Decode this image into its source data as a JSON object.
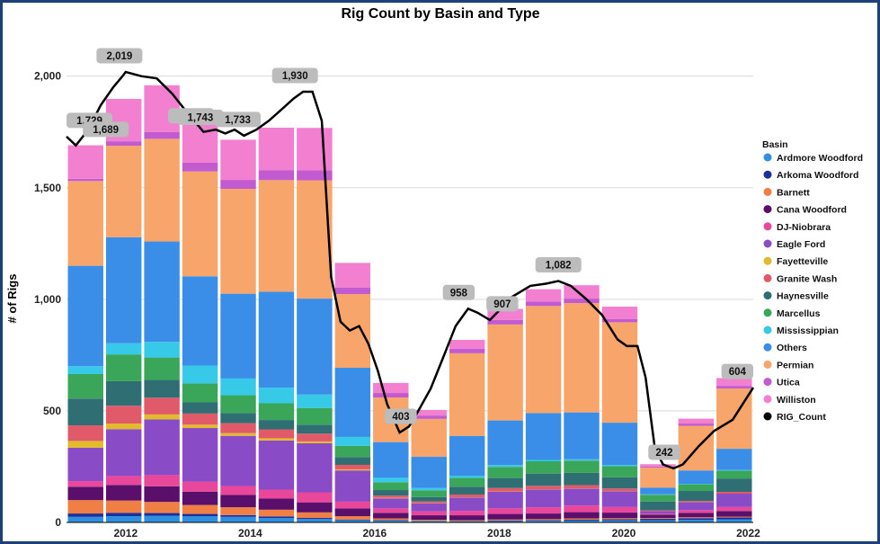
{
  "chart_data": {
    "type": "bar",
    "title": "Rig Count by Basin and Type",
    "ylabel": "# of Rigs",
    "xlabel": "",
    "x_ticks": [
      "2012",
      "2014",
      "2016",
      "2018",
      "2020",
      "2022"
    ],
    "y_ticks": [
      "0",
      "500",
      "1,000",
      "1,500",
      "2,000"
    ],
    "ylim": [
      0,
      2180
    ],
    "xlim": [
      2011.05,
      2022.08
    ],
    "grid": true,
    "legend": {
      "title": "Basin",
      "placement": "right"
    },
    "series": [
      {
        "name": "Ardmore Woodford",
        "color": "#2f8fe0",
        "values": [
          25,
          28,
          30,
          28,
          25,
          20,
          15,
          10,
          8,
          6,
          5,
          6,
          7,
          8,
          9,
          10,
          12,
          14
        ]
      },
      {
        "name": "Arkoma Woodford",
        "color": "#1c2f9a",
        "values": [
          15,
          15,
          12,
          10,
          8,
          7,
          5,
          3,
          2,
          1,
          1,
          2,
          3,
          4,
          5,
          6,
          7,
          8
        ]
      },
      {
        "name": "Barnett",
        "color": "#f07f45",
        "values": [
          60,
          55,
          50,
          40,
          35,
          30,
          25,
          15,
          8,
          5,
          4,
          5,
          5,
          6,
          5,
          4,
          4,
          4
        ]
      },
      {
        "name": "Cana Woodford",
        "color": "#5a0f6a",
        "values": [
          60,
          70,
          70,
          60,
          55,
          50,
          45,
          35,
          25,
          20,
          22,
          25,
          25,
          28,
          25,
          15,
          20,
          25
        ]
      },
      {
        "name": "DJ-Niobrara",
        "color": "#e8479b",
        "values": [
          25,
          40,
          50,
          45,
          40,
          40,
          45,
          30,
          20,
          18,
          20,
          25,
          28,
          30,
          25,
          5,
          12,
          18
        ]
      },
      {
        "name": "Eagle Ford",
        "color": "#8a4bc7",
        "values": [
          150,
          210,
          250,
          240,
          225,
          220,
          220,
          140,
          45,
          35,
          60,
          75,
          80,
          75,
          70,
          10,
          35,
          60
        ]
      },
      {
        "name": "Fayetteville",
        "color": "#e3bb2a",
        "values": [
          30,
          25,
          22,
          15,
          12,
          10,
          8,
          5,
          2,
          1,
          1,
          1,
          1,
          1,
          1,
          0,
          0,
          0
        ]
      },
      {
        "name": "Granite Wash",
        "color": "#e05a6a",
        "values": [
          70,
          80,
          75,
          50,
          45,
          40,
          35,
          20,
          10,
          8,
          12,
          15,
          15,
          15,
          12,
          4,
          6,
          8
        ]
      },
      {
        "name": "Haynesville",
        "color": "#2f6f73",
        "values": [
          120,
          110,
          80,
          50,
          45,
          42,
          40,
          35,
          25,
          20,
          35,
          45,
          55,
          55,
          50,
          40,
          45,
          60
        ]
      },
      {
        "name": "Marcellus",
        "color": "#3aa65a",
        "values": [
          110,
          120,
          100,
          85,
          80,
          75,
          75,
          50,
          35,
          30,
          40,
          50,
          55,
          55,
          50,
          30,
          30,
          35
        ]
      },
      {
        "name": "Mississippian",
        "color": "#36c9e8",
        "values": [
          35,
          50,
          70,
          80,
          75,
          70,
          60,
          40,
          20,
          10,
          8,
          8,
          6,
          6,
          5,
          2,
          2,
          3
        ]
      },
      {
        "name": "Others",
        "color": "#3b8ee8",
        "values": [
          450,
          475,
          450,
          400,
          380,
          430,
          430,
          310,
          160,
          140,
          180,
          200,
          210,
          210,
          190,
          30,
          60,
          95
        ]
      },
      {
        "name": "Permian",
        "color": "#f7a56b",
        "values": [
          380,
          410,
          460,
          470,
          470,
          500,
          530,
          330,
          200,
          170,
          370,
          430,
          480,
          490,
          450,
          90,
          200,
          270
        ]
      },
      {
        "name": "Utica",
        "color": "#c25ad0",
        "values": [
          10,
          20,
          30,
          40,
          40,
          45,
          45,
          30,
          20,
          15,
          20,
          20,
          20,
          20,
          15,
          5,
          10,
          12
        ]
      },
      {
        "name": "Williston",
        "color": "#f27fcf",
        "values": [
          150,
          190,
          210,
          190,
          180,
          190,
          190,
          110,
          45,
          25,
          40,
          50,
          55,
          60,
          55,
          10,
          22,
          35
        ]
      }
    ],
    "rig_count": {
      "name": "RIG_Count",
      "color": "#000000",
      "points": [
        [
          2011.05,
          1729
        ],
        [
          2011.2,
          1689
        ],
        [
          2011.4,
          1760
        ],
        [
          2011.6,
          1870
        ],
        [
          2011.8,
          1950
        ],
        [
          2011.95,
          2000
        ],
        [
          2012.0,
          2019
        ],
        [
          2012.25,
          2000
        ],
        [
          2012.5,
          1990
        ],
        [
          2012.75,
          1920
        ],
        [
          2012.95,
          1850
        ],
        [
          2013.1,
          1800
        ],
        [
          2013.25,
          1750
        ],
        [
          2013.45,
          1760
        ],
        [
          2013.6,
          1743
        ],
        [
          2013.75,
          1760
        ],
        [
          2013.9,
          1733
        ],
        [
          2014.1,
          1760
        ],
        [
          2014.3,
          1800
        ],
        [
          2014.5,
          1850
        ],
        [
          2014.7,
          1900
        ],
        [
          2014.85,
          1930
        ],
        [
          2015.0,
          1930
        ],
        [
          2015.15,
          1800
        ],
        [
          2015.3,
          1100
        ],
        [
          2015.45,
          900
        ],
        [
          2015.6,
          860
        ],
        [
          2015.75,
          880
        ],
        [
          2015.9,
          800
        ],
        [
          2016.05,
          680
        ],
        [
          2016.2,
          530
        ],
        [
          2016.4,
          403
        ],
        [
          2016.55,
          430
        ],
        [
          2016.7,
          500
        ],
        [
          2016.9,
          600
        ],
        [
          2017.1,
          740
        ],
        [
          2017.3,
          880
        ],
        [
          2017.5,
          958
        ],
        [
          2017.65,
          940
        ],
        [
          2017.85,
          907
        ],
        [
          2018.0,
          950
        ],
        [
          2018.2,
          1010
        ],
        [
          2018.5,
          1060
        ],
        [
          2018.75,
          1070
        ],
        [
          2018.95,
          1082
        ],
        [
          2019.15,
          1060
        ],
        [
          2019.4,
          1000
        ],
        [
          2019.65,
          930
        ],
        [
          2019.9,
          820
        ],
        [
          2020.05,
          790
        ],
        [
          2020.22,
          790
        ],
        [
          2020.35,
          650
        ],
        [
          2020.5,
          330
        ],
        [
          2020.63,
          260
        ],
        [
          2020.8,
          242
        ],
        [
          2020.95,
          260
        ],
        [
          2021.2,
          340
        ],
        [
          2021.45,
          410
        ],
        [
          2021.75,
          460
        ],
        [
          2022.08,
          604
        ]
      ]
    },
    "annotations": [
      {
        "text": "2,019",
        "x": 2011.9,
        "y": 2019
      },
      {
        "text": "1,729",
        "x": 2011.35,
        "y": 1729
      },
      {
        "text": "1,689",
        "x": 2011.68,
        "y": 1689
      },
      {
        "text": "1,750",
        "x": 2013.05,
        "y": 1750
      },
      {
        "text": "1,743",
        "x": 2013.2,
        "y": 1743
      },
      {
        "text": "1,733",
        "x": 2013.8,
        "y": 1733
      },
      {
        "text": "1,930",
        "x": 2014.72,
        "y": 1930
      },
      {
        "text": "403",
        "x": 2016.42,
        "y": 403
      },
      {
        "text": "958",
        "x": 2017.35,
        "y": 958
      },
      {
        "text": "907",
        "x": 2018.05,
        "y": 907
      },
      {
        "text": "1,082",
        "x": 2018.95,
        "y": 1082
      },
      {
        "text": "242",
        "x": 2020.65,
        "y": 242
      },
      {
        "text": "604",
        "x": 2021.85,
        "y": 604
      }
    ]
  }
}
